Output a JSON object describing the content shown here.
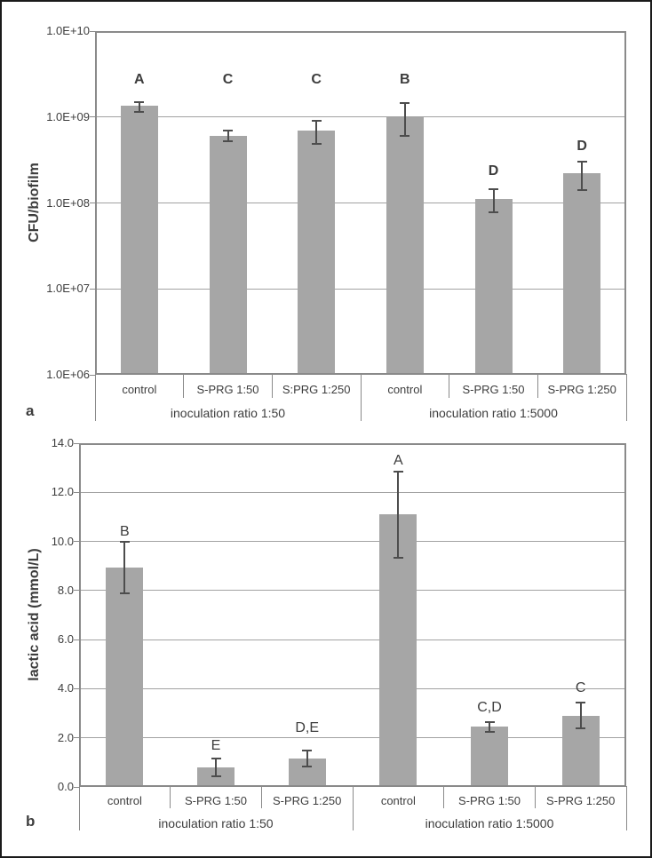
{
  "chart_data": [
    {
      "type": "bar",
      "panel_label": "a",
      "title": "",
      "xlabel": "",
      "ylabel": "CFU/biofilm",
      "yscale": "log",
      "ylim": [
        1000000.0,
        10000000000.0
      ],
      "grid": true,
      "legend": "none",
      "bar_color": "#a6a6a6",
      "error_bar_color": "#4d4d4d",
      "yticks": [
        {
          "label": "1.0E+10",
          "value": 10000000000.0
        },
        {
          "label": "1.0E+09",
          "value": 1000000000.0
        },
        {
          "label": "1.0E+08",
          "value": 100000000.0
        },
        {
          "label": "1.0E+07",
          "value": 10000000.0
        },
        {
          "label": "1.0E+06",
          "value": 1000000.0
        }
      ],
      "groups": [
        {
          "label": "inoculation ratio 1:50"
        },
        {
          "label": "inoculation ratio 1:5000"
        }
      ],
      "bars": [
        {
          "category": "control",
          "group": "inoculation ratio 1:50",
          "value": 1350000000.0,
          "err_low": 1150000000.0,
          "err_high": 1500000000.0,
          "letter": "A"
        },
        {
          "category": "S-PRG 1:50",
          "group": "inoculation ratio 1:50",
          "value": 600000000.0,
          "err_low": 520000000.0,
          "err_high": 690000000.0,
          "letter": "C"
        },
        {
          "category": "S:PRG 1:250",
          "group": "inoculation ratio 1:50",
          "value": 700000000.0,
          "err_low": 490000000.0,
          "err_high": 900000000.0,
          "letter": "C"
        },
        {
          "category": "control",
          "group": "inoculation ratio 1:5000",
          "value": 1000000000.0,
          "err_low": 610000000.0,
          "err_high": 1450000000.0,
          "letter": "B"
        },
        {
          "category": "S-PRG 1:50",
          "group": "inoculation ratio 1:5000",
          "value": 112000000.0,
          "err_low": 78000000.0,
          "err_high": 145000000.0,
          "letter": "D"
        },
        {
          "category": "S-PRG 1:250",
          "group": "inoculation ratio 1:5000",
          "value": 220000000.0,
          "err_low": 140000000.0,
          "err_high": 300000000.0,
          "letter": "D"
        }
      ]
    },
    {
      "type": "bar",
      "panel_label": "b",
      "title": "",
      "xlabel": "",
      "ylabel": "lactic acid (mmol/L)",
      "yscale": "linear",
      "ylim": [
        0,
        14
      ],
      "grid": true,
      "legend": "none",
      "bar_color": "#a6a6a6",
      "error_bar_color": "#4d4d4d",
      "yticks": [
        {
          "label": "14.0",
          "value": 14
        },
        {
          "label": "12.0",
          "value": 12
        },
        {
          "label": "10.0",
          "value": 10
        },
        {
          "label": "8.0",
          "value": 8
        },
        {
          "label": "6.0",
          "value": 6
        },
        {
          "label": "4.0",
          "value": 4
        },
        {
          "label": "2.0",
          "value": 2
        },
        {
          "label": "0.0",
          "value": 0
        }
      ],
      "groups": [
        {
          "label": "inoculation ratio 1:50"
        },
        {
          "label": "inoculation ratio 1:5000"
        }
      ],
      "bars": [
        {
          "category": "control",
          "group": "inoculation ratio 1:50",
          "value": 8.95,
          "err_low": 7.9,
          "err_high": 10.0,
          "letter": "B"
        },
        {
          "category": "S-PRG 1:50",
          "group": "inoculation ratio 1:50",
          "value": 0.8,
          "err_low": 0.45,
          "err_high": 1.15,
          "letter": "E"
        },
        {
          "category": "S-PRG 1:250",
          "group": "inoculation ratio 1:50",
          "value": 1.15,
          "err_low": 0.85,
          "err_high": 1.5,
          "letter": "D,E"
        },
        {
          "category": "control",
          "group": "inoculation ratio 1:5000",
          "value": 11.1,
          "err_low": 9.35,
          "err_high": 12.85,
          "letter": "A"
        },
        {
          "category": "S-PRG 1:50",
          "group": "inoculation ratio 1:5000",
          "value": 2.45,
          "err_low": 2.25,
          "err_high": 2.65,
          "letter": "C,D"
        },
        {
          "category": "S-PRG 1:250",
          "group": "inoculation ratio 1:5000",
          "value": 2.9,
          "err_low": 2.4,
          "err_high": 3.45,
          "letter": "C"
        }
      ]
    }
  ]
}
